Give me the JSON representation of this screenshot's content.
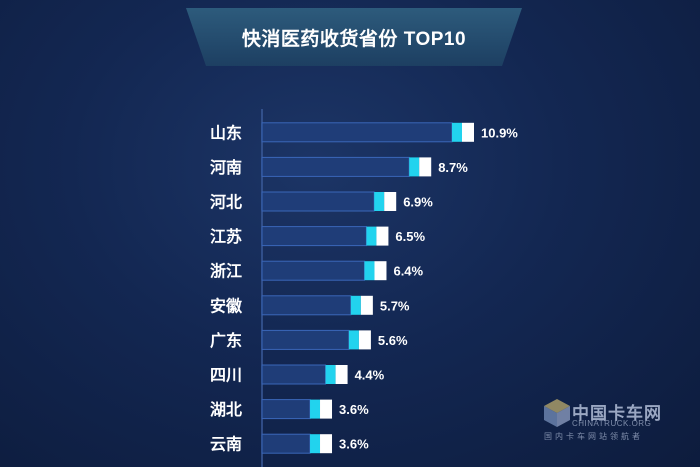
{
  "chart_data": {
    "type": "bar",
    "orientation": "horizontal",
    "title": "快消医药收货省份 TOP10",
    "categories": [
      "山东",
      "河南",
      "河北",
      "江苏",
      "浙江",
      "安徽",
      "广东",
      "四川",
      "湖北",
      "云南"
    ],
    "values": [
      10.9,
      8.7,
      6.9,
      6.5,
      6.4,
      5.7,
      5.6,
      4.4,
      3.6,
      3.6
    ],
    "value_labels": [
      "10.9%",
      "8.7%",
      "6.9%",
      "6.5%",
      "6.4%",
      "5.7%",
      "5.6%",
      "4.4%",
      "3.6%",
      "3.6%"
    ],
    "unit": "%",
    "xlim": [
      0,
      12
    ],
    "grid": false,
    "legend": "none",
    "colors": {
      "bar_fill": "#1f3d78",
      "bar_border": "#3a66b8",
      "accent_cyan": "#22d3ee",
      "accent_white": "#ffffff",
      "axis_line": "#3a5a99"
    }
  },
  "watermark": {
    "name_cn": "中国卡车网",
    "name_en": "CHINATRUCK.ORG",
    "slogan": "国内卡车网站领航者",
    "icon": "cube-logo-icon"
  }
}
